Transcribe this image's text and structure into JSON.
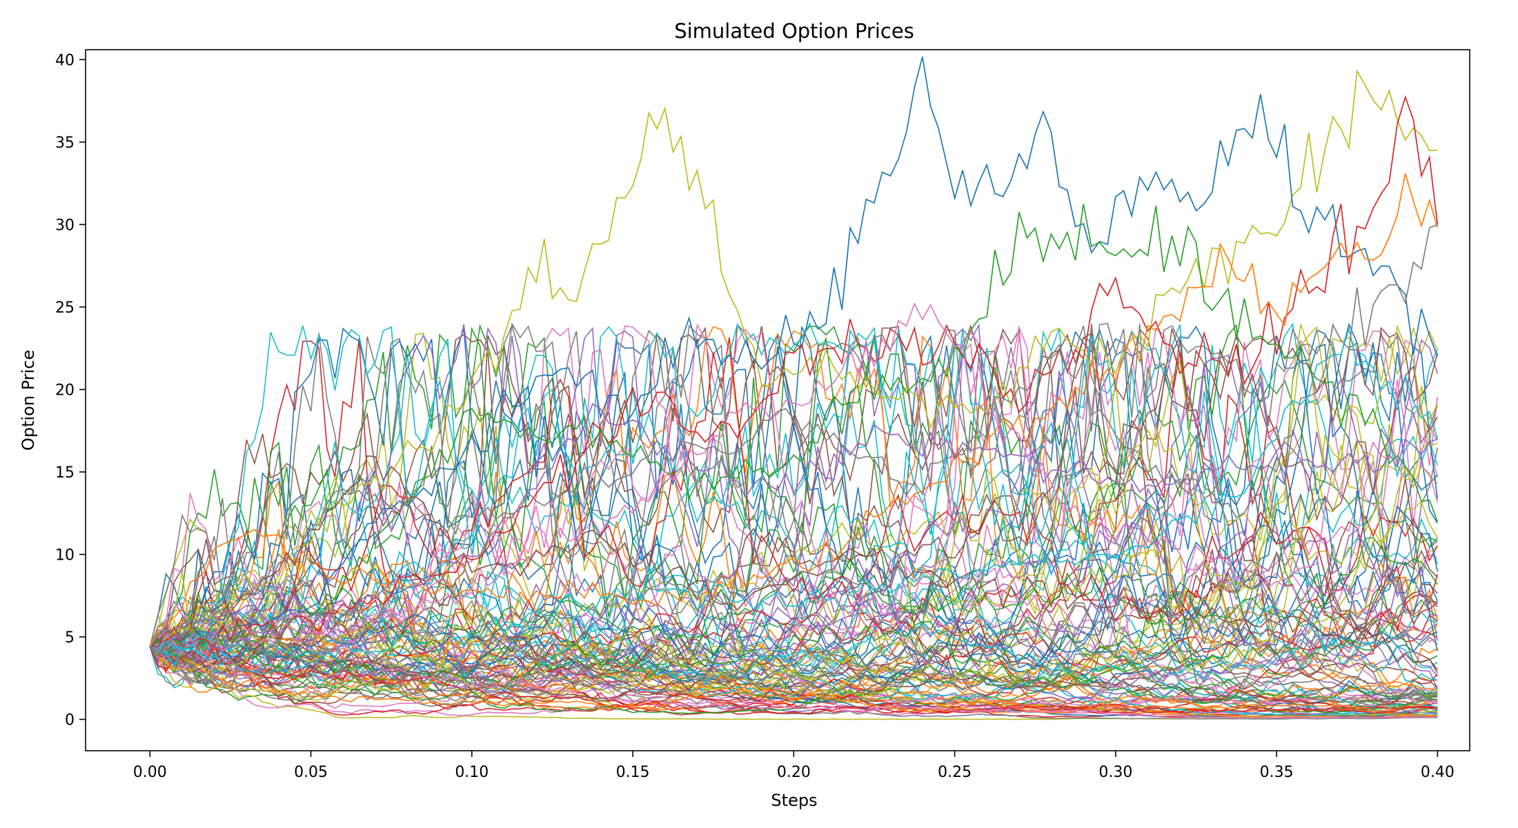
{
  "chart_data": {
    "type": "line",
    "title": "Simulated Option Prices",
    "xlabel": "Steps",
    "ylabel": "Option Price",
    "xlim": [
      -0.02,
      0.41
    ],
    "ylim": [
      -1.9,
      40.6
    ],
    "xticks": [
      "0.00",
      "0.05",
      "0.10",
      "0.15",
      "0.20",
      "0.25",
      "0.30",
      "0.35",
      "0.40"
    ],
    "xtick_values": [
      0.0,
      0.05,
      0.1,
      0.15,
      0.2,
      0.25,
      0.3,
      0.35,
      0.4
    ],
    "yticks": [
      "0",
      "5",
      "10",
      "15",
      "20",
      "25",
      "30",
      "35",
      "40"
    ],
    "ytick_values": [
      0,
      5,
      10,
      15,
      20,
      25,
      30,
      35,
      40
    ],
    "grid": false,
    "legend": "none",
    "initial_price": 4.4,
    "x_start": 0.0,
    "x_end": 0.4,
    "num_steps": 160,
    "num_paths": 100,
    "colors": [
      "#1f77b4",
      "#ff7f0e",
      "#2ca02c",
      "#d62728",
      "#9467bd",
      "#8c564b",
      "#e377c2",
      "#7f7f7f",
      "#bcbd22",
      "#17becf"
    ],
    "highlight_paths": [
      {
        "color": "#bcbd22",
        "x": [
          0.0,
          0.02,
          0.04,
          0.06,
          0.08,
          0.1,
          0.12,
          0.13,
          0.15,
          0.16,
          0.175,
          0.19,
          0.21,
          0.23,
          0.26,
          0.28,
          0.3,
          0.33,
          0.35,
          0.37,
          0.39,
          0.4
        ],
        "y": [
          4.4,
          6.5,
          9.0,
          13.0,
          15.8,
          19.5,
          27.8,
          25.0,
          33.0,
          36.8,
          30.0,
          20.0,
          22.0,
          20.0,
          18.5,
          24.0,
          22.0,
          28.0,
          30.0,
          37.0,
          37.5,
          34.5
        ]
      },
      {
        "color": "#1f77b4",
        "x": [
          0.0,
          0.03,
          0.05,
          0.07,
          0.09,
          0.11,
          0.13,
          0.15,
          0.165,
          0.19,
          0.21,
          0.23,
          0.24,
          0.25,
          0.27,
          0.275,
          0.29,
          0.31,
          0.33,
          0.345,
          0.36,
          0.38,
          0.4
        ],
        "y": [
          4.4,
          6.0,
          7.0,
          12.0,
          14.0,
          18.8,
          21.8,
          18.0,
          23.5,
          21.0,
          24.5,
          34.0,
          38.2,
          32.0,
          33.0,
          37.9,
          29.0,
          32.5,
          32.0,
          36.7,
          31.0,
          28.0,
          22.0
        ]
      },
      {
        "color": "#d62728",
        "x": [
          0.0,
          0.05,
          0.1,
          0.15,
          0.18,
          0.2,
          0.22,
          0.25,
          0.27,
          0.3,
          0.32,
          0.34,
          0.36,
          0.38,
          0.392,
          0.4
        ],
        "y": [
          4.4,
          6.0,
          10.0,
          19.0,
          17.0,
          22.0,
          22.5,
          23.0,
          19.0,
          25.5,
          22.0,
          22.0,
          26.0,
          31.0,
          38.6,
          30.0
        ]
      },
      {
        "color": "#2ca02c",
        "x": [
          0.0,
          0.05,
          0.1,
          0.14,
          0.17,
          0.2,
          0.22,
          0.25,
          0.27,
          0.28,
          0.3,
          0.32,
          0.34,
          0.36,
          0.38,
          0.4
        ],
        "y": [
          4.4,
          5.5,
          18.3,
          17.0,
          14.0,
          16.0,
          20.0,
          21.0,
          30.3,
          29.0,
          28.0,
          29.0,
          24.0,
          22.0,
          18.0,
          12.0
        ]
      },
      {
        "color": "#ff7f0e",
        "x": [
          0.0,
          0.01,
          0.03,
          0.05,
          0.08,
          0.12,
          0.16,
          0.2,
          0.24,
          0.27,
          0.3,
          0.33,
          0.35,
          0.37,
          0.395,
          0.4
        ],
        "y": [
          4.4,
          7.5,
          11.8,
          9.0,
          8.0,
          8.0,
          7.0,
          9.0,
          14.0,
          18.0,
          21.0,
          27.5,
          24.0,
          28.0,
          31.5,
          29.8
        ]
      },
      {
        "color": "#e377c2",
        "x": [
          0.0,
          0.05,
          0.1,
          0.15,
          0.18,
          0.21,
          0.24,
          0.26,
          0.29,
          0.32,
          0.36,
          0.4
        ],
        "y": [
          4.4,
          5.0,
          8.0,
          13.0,
          18.0,
          20.0,
          25.2,
          19.0,
          12.0,
          10.0,
          8.0,
          5.0
        ]
      },
      {
        "color": "#9467bd",
        "x": [
          0.0,
          0.05,
          0.1,
          0.14,
          0.16,
          0.19,
          0.23,
          0.27,
          0.31,
          0.35,
          0.38,
          0.4
        ],
        "y": [
          4.4,
          6.0,
          10.0,
          19.0,
          16.0,
          14.0,
          17.0,
          16.0,
          14.0,
          16.0,
          15.0,
          17.0
        ]
      },
      {
        "color": "#17becf",
        "x": [
          0.0,
          0.05,
          0.1,
          0.15,
          0.2,
          0.25,
          0.3,
          0.34,
          0.37,
          0.39,
          0.4
        ],
        "y": [
          4.4,
          4.0,
          5.0,
          8.0,
          7.0,
          9.0,
          10.0,
          14.0,
          23.0,
          20.0,
          17.0
        ]
      },
      {
        "color": "#7f7f7f",
        "x": [
          0.0,
          0.03,
          0.06,
          0.09,
          0.12,
          0.16,
          0.2,
          0.24,
          0.28,
          0.31,
          0.34,
          0.37,
          0.39,
          0.4
        ],
        "y": [
          4.4,
          7.0,
          14.0,
          12.0,
          13.0,
          16.0,
          18.0,
          14.0,
          22.0,
          15.0,
          13.0,
          23.0,
          26.0,
          30.0
        ]
      },
      {
        "color": "#8c564b",
        "x": [
          0.0,
          0.04,
          0.07,
          0.1,
          0.14,
          0.18,
          0.22,
          0.26,
          0.3,
          0.34,
          0.38,
          0.4
        ],
        "y": [
          4.4,
          9.0,
          16.0,
          9.0,
          11.0,
          7.0,
          10.0,
          8.0,
          7.0,
          6.0,
          5.0,
          3.0
        ]
      }
    ]
  }
}
